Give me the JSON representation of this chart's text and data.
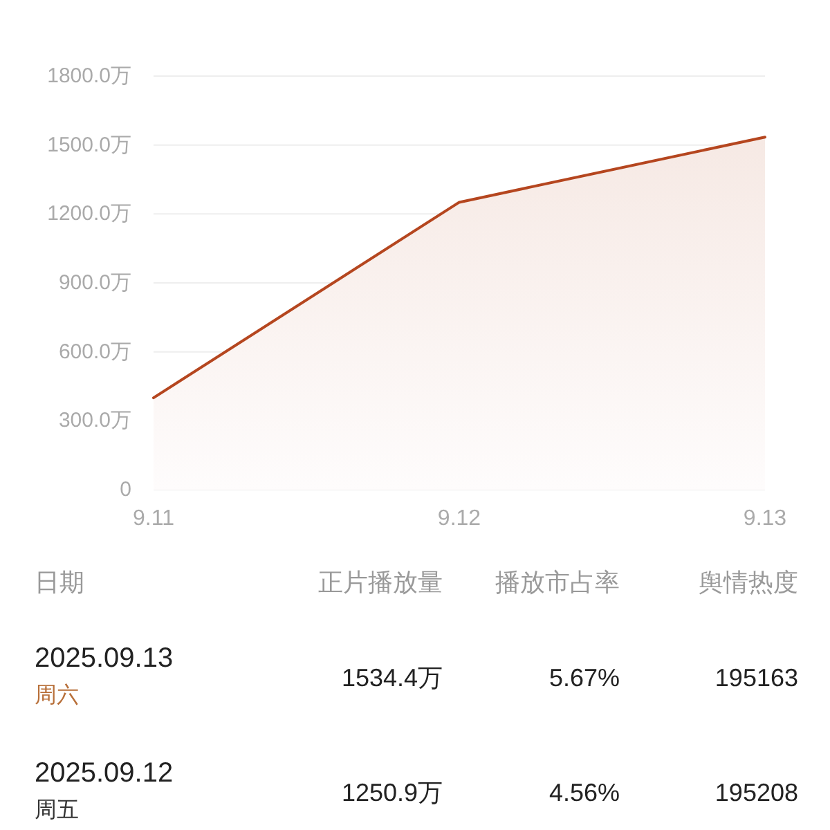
{
  "chart_data": {
    "type": "area",
    "categories": [
      "9.11",
      "9.12",
      "9.13"
    ],
    "values": [
      400,
      1250.9,
      1534.4
    ],
    "color": "#b5461f",
    "ylim": [
      0,
      1800
    ],
    "yticks": [
      0,
      {
        "value": 300,
        "label": "300.0万"
      },
      {
        "value": 600,
        "label": "600.0万"
      },
      {
        "value": 900,
        "label": "900.0万"
      },
      {
        "value": 1200,
        "label": "1200.0万"
      },
      {
        "value": 1500,
        "label": "1500.0万"
      },
      {
        "value": 1800,
        "label": "1800.0万"
      }
    ],
    "grid": "y",
    "annotations": [
      "日期",
      "正片播放量",
      "播放市占率",
      "舆情热度",
      "2025.09.13",
      "周六",
      "1534.4万",
      "5.67%",
      "195163",
      "2025.09.12",
      "周五",
      "1250.9万",
      "4.56%",
      "195208"
    ]
  }
}
